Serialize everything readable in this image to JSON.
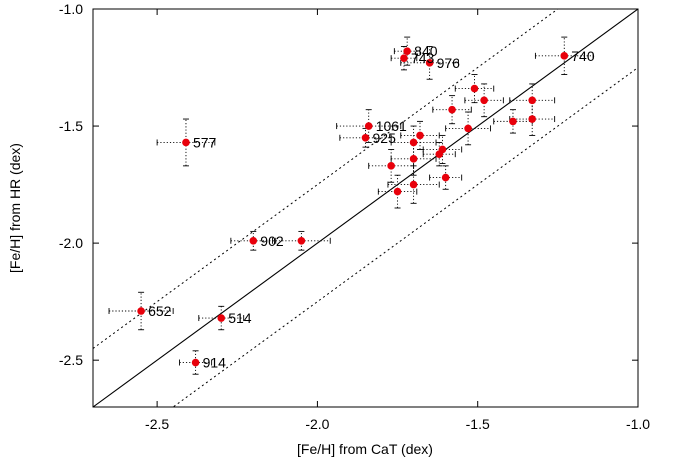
{
  "chart_data": {
    "type": "scatter",
    "xlabel": "[Fe/H] from CaT (dex)",
    "ylabel": "[Fe/H] from HR (dex)",
    "xlim": [
      -2.7,
      -1.0
    ],
    "ylim": [
      -2.7,
      -1.0
    ],
    "x_ticks": [
      -2.5,
      -2.0,
      -1.5,
      -1.0
    ],
    "y_ticks": [
      -2.5,
      -2.0,
      -1.5,
      -1.0
    ],
    "x_tick_labels": [
      "-2.5",
      "-2.0",
      "-1.5",
      "-1.0"
    ],
    "y_tick_labels": [
      "-2.5",
      "-2.0",
      "-1.5",
      "-1.0"
    ],
    "grid": false,
    "point_color": "#e8000b",
    "lines": [
      {
        "style": "solid",
        "slope": 1,
        "offset": 0.0
      },
      {
        "style": "dotted",
        "slope": 1,
        "offset": 0.25
      },
      {
        "style": "dotted",
        "slope": 1,
        "offset": -0.25
      }
    ],
    "points": [
      {
        "x": -2.41,
        "y": -1.57,
        "xerr": 0.09,
        "yerr": 0.1,
        "label": "577"
      },
      {
        "x": -2.55,
        "y": -2.29,
        "xerr": 0.1,
        "yerr": 0.08,
        "label": "652"
      },
      {
        "x": -2.3,
        "y": -2.32,
        "xerr": 0.07,
        "yerr": 0.05,
        "label": "514"
      },
      {
        "x": -2.38,
        "y": -2.51,
        "xerr": 0.05,
        "yerr": 0.05,
        "label": "914"
      },
      {
        "x": -2.2,
        "y": -1.99,
        "xerr": 0.07,
        "yerr": 0.04,
        "label": "902"
      },
      {
        "x": -2.05,
        "y": -1.99,
        "xerr": 0.09,
        "yerr": 0.04,
        "label": ""
      },
      {
        "x": -1.84,
        "y": -1.5,
        "xerr": 0.1,
        "yerr": 0.07,
        "label": "1061"
      },
      {
        "x": -1.85,
        "y": -1.55,
        "xerr": 0.08,
        "yerr": 0.04,
        "label": "925"
      },
      {
        "x": -1.72,
        "y": -1.18,
        "xerr": 0.04,
        "yerr": 0.06,
        "label": "840"
      },
      {
        "x": -1.73,
        "y": -1.21,
        "xerr": 0.04,
        "yerr": 0.05,
        "label": "743"
      },
      {
        "x": -1.65,
        "y": -1.23,
        "xerr": 0.09,
        "yerr": 0.07,
        "label": "976"
      },
      {
        "x": -1.23,
        "y": -1.2,
        "xerr": 0.09,
        "yerr": 0.08,
        "label": "740"
      },
      {
        "x": -1.51,
        "y": -1.34,
        "xerr": 0.06,
        "yerr": 0.06,
        "label": ""
      },
      {
        "x": -1.48,
        "y": -1.39,
        "xerr": 0.06,
        "yerr": 0.07,
        "label": ""
      },
      {
        "x": -1.58,
        "y": -1.43,
        "xerr": 0.06,
        "yerr": 0.06,
        "label": ""
      },
      {
        "x": -1.53,
        "y": -1.51,
        "xerr": 0.07,
        "yerr": 0.07,
        "label": ""
      },
      {
        "x": -1.68,
        "y": -1.54,
        "xerr": 0.06,
        "yerr": 0.06,
        "label": ""
      },
      {
        "x": -1.7,
        "y": -1.57,
        "xerr": 0.07,
        "yerr": 0.07,
        "label": ""
      },
      {
        "x": -1.61,
        "y": -1.6,
        "xerr": 0.06,
        "yerr": 0.06,
        "label": ""
      },
      {
        "x": -1.62,
        "y": -1.62,
        "xerr": 0.05,
        "yerr": 0.05,
        "label": ""
      },
      {
        "x": -1.7,
        "y": -1.64,
        "xerr": 0.07,
        "yerr": 0.07,
        "label": ""
      },
      {
        "x": -1.77,
        "y": -1.67,
        "xerr": 0.07,
        "yerr": 0.07,
        "label": ""
      },
      {
        "x": -1.6,
        "y": -1.72,
        "xerr": 0.05,
        "yerr": 0.05,
        "label": ""
      },
      {
        "x": -1.7,
        "y": -1.75,
        "xerr": 0.08,
        "yerr": 0.08,
        "label": ""
      },
      {
        "x": -1.75,
        "y": -1.78,
        "xerr": 0.06,
        "yerr": 0.07,
        "label": ""
      },
      {
        "x": -1.39,
        "y": -1.48,
        "xerr": 0.06,
        "yerr": 0.05,
        "label": ""
      },
      {
        "x": -1.33,
        "y": -1.39,
        "xerr": 0.07,
        "yerr": 0.07,
        "label": ""
      },
      {
        "x": -1.33,
        "y": -1.47,
        "xerr": 0.07,
        "yerr": 0.07,
        "label": ""
      }
    ]
  }
}
